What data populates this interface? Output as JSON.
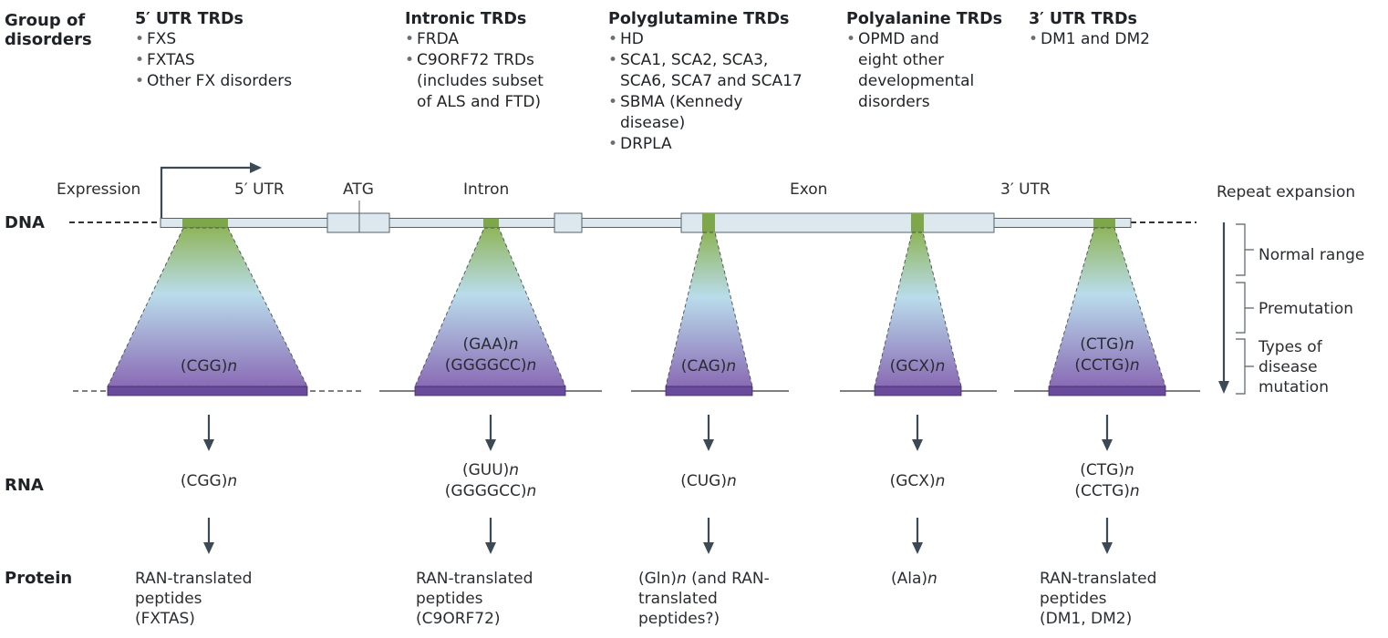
{
  "row_labels": {
    "group": [
      "Group of",
      "disorders"
    ],
    "dna": "DNA",
    "rna": "RNA",
    "protein": "Protein"
  },
  "groups": [
    {
      "title": "5′ UTR TRDs",
      "items": [
        "FXS",
        "FXTAS",
        "Other FX disorders"
      ]
    },
    {
      "title": "Intronic TRDs",
      "items": [
        "FRDA",
        "C9ORF72 TRDs|(includes subset|of ALS and FTD)"
      ]
    },
    {
      "title": "Polyglutamine TRDs",
      "items": [
        "HD",
        "SCA1, SCA2, SCA3,|SCA6, SCA7 and SCA17",
        "SBMA (Kennedy|disease)",
        "DRPLA"
      ]
    },
    {
      "title": "Polyalanine TRDs",
      "items": [
        "OPMD and|eight other|developmental|disorders"
      ]
    },
    {
      "title": "3′ UTR TRDs",
      "items": [
        "DM1 and DM2"
      ]
    }
  ],
  "gene_labels": {
    "expression": "Expression",
    "utr5": "5′ UTR",
    "atg": "ATG",
    "intron": "Intron",
    "exon": "Exon",
    "utr3": "3′ UTR"
  },
  "dna_repeats": [
    [
      "(CGG)n"
    ],
    [
      "(GAA)n",
      "(GGGGCC)n"
    ],
    [
      "(CAG)n"
    ],
    [
      "(GCX)n"
    ],
    [
      "(CTG)n",
      "(CCTG)n"
    ]
  ],
  "rna_repeats": [
    [
      "(CGG)n"
    ],
    [
      "(GUU)n",
      "(GGGGCC)n"
    ],
    [
      "(CUG)n"
    ],
    [
      "(GCX)n"
    ],
    [
      "(CTG)n",
      "(CCTG)n"
    ]
  ],
  "proteins": [
    [
      "RAN-translated",
      "peptides",
      "(FXTAS)"
    ],
    [
      "RAN-translated",
      "peptides",
      "(C9ORF72)"
    ],
    [
      "(Gln)n (and RAN-",
      "translated",
      "peptides?)"
    ],
    [
      "(Ala)n"
    ],
    [
      "RAN-translated",
      "peptides",
      "(DM1, DM2)"
    ]
  ],
  "repeat_expansion": {
    "title": "Repeat expansion",
    "ranges": [
      "Normal range",
      "Premutation",
      "Types of|disease|mutation"
    ]
  },
  "colors": {
    "text": "#1f2328",
    "gene_bar": "#dce8ee",
    "gene_bar_stroke": "#4f5b63",
    "repeat_green": "#7ea64a",
    "disease_purple": "#6a4a9c",
    "arrow": "#3c4a55"
  }
}
